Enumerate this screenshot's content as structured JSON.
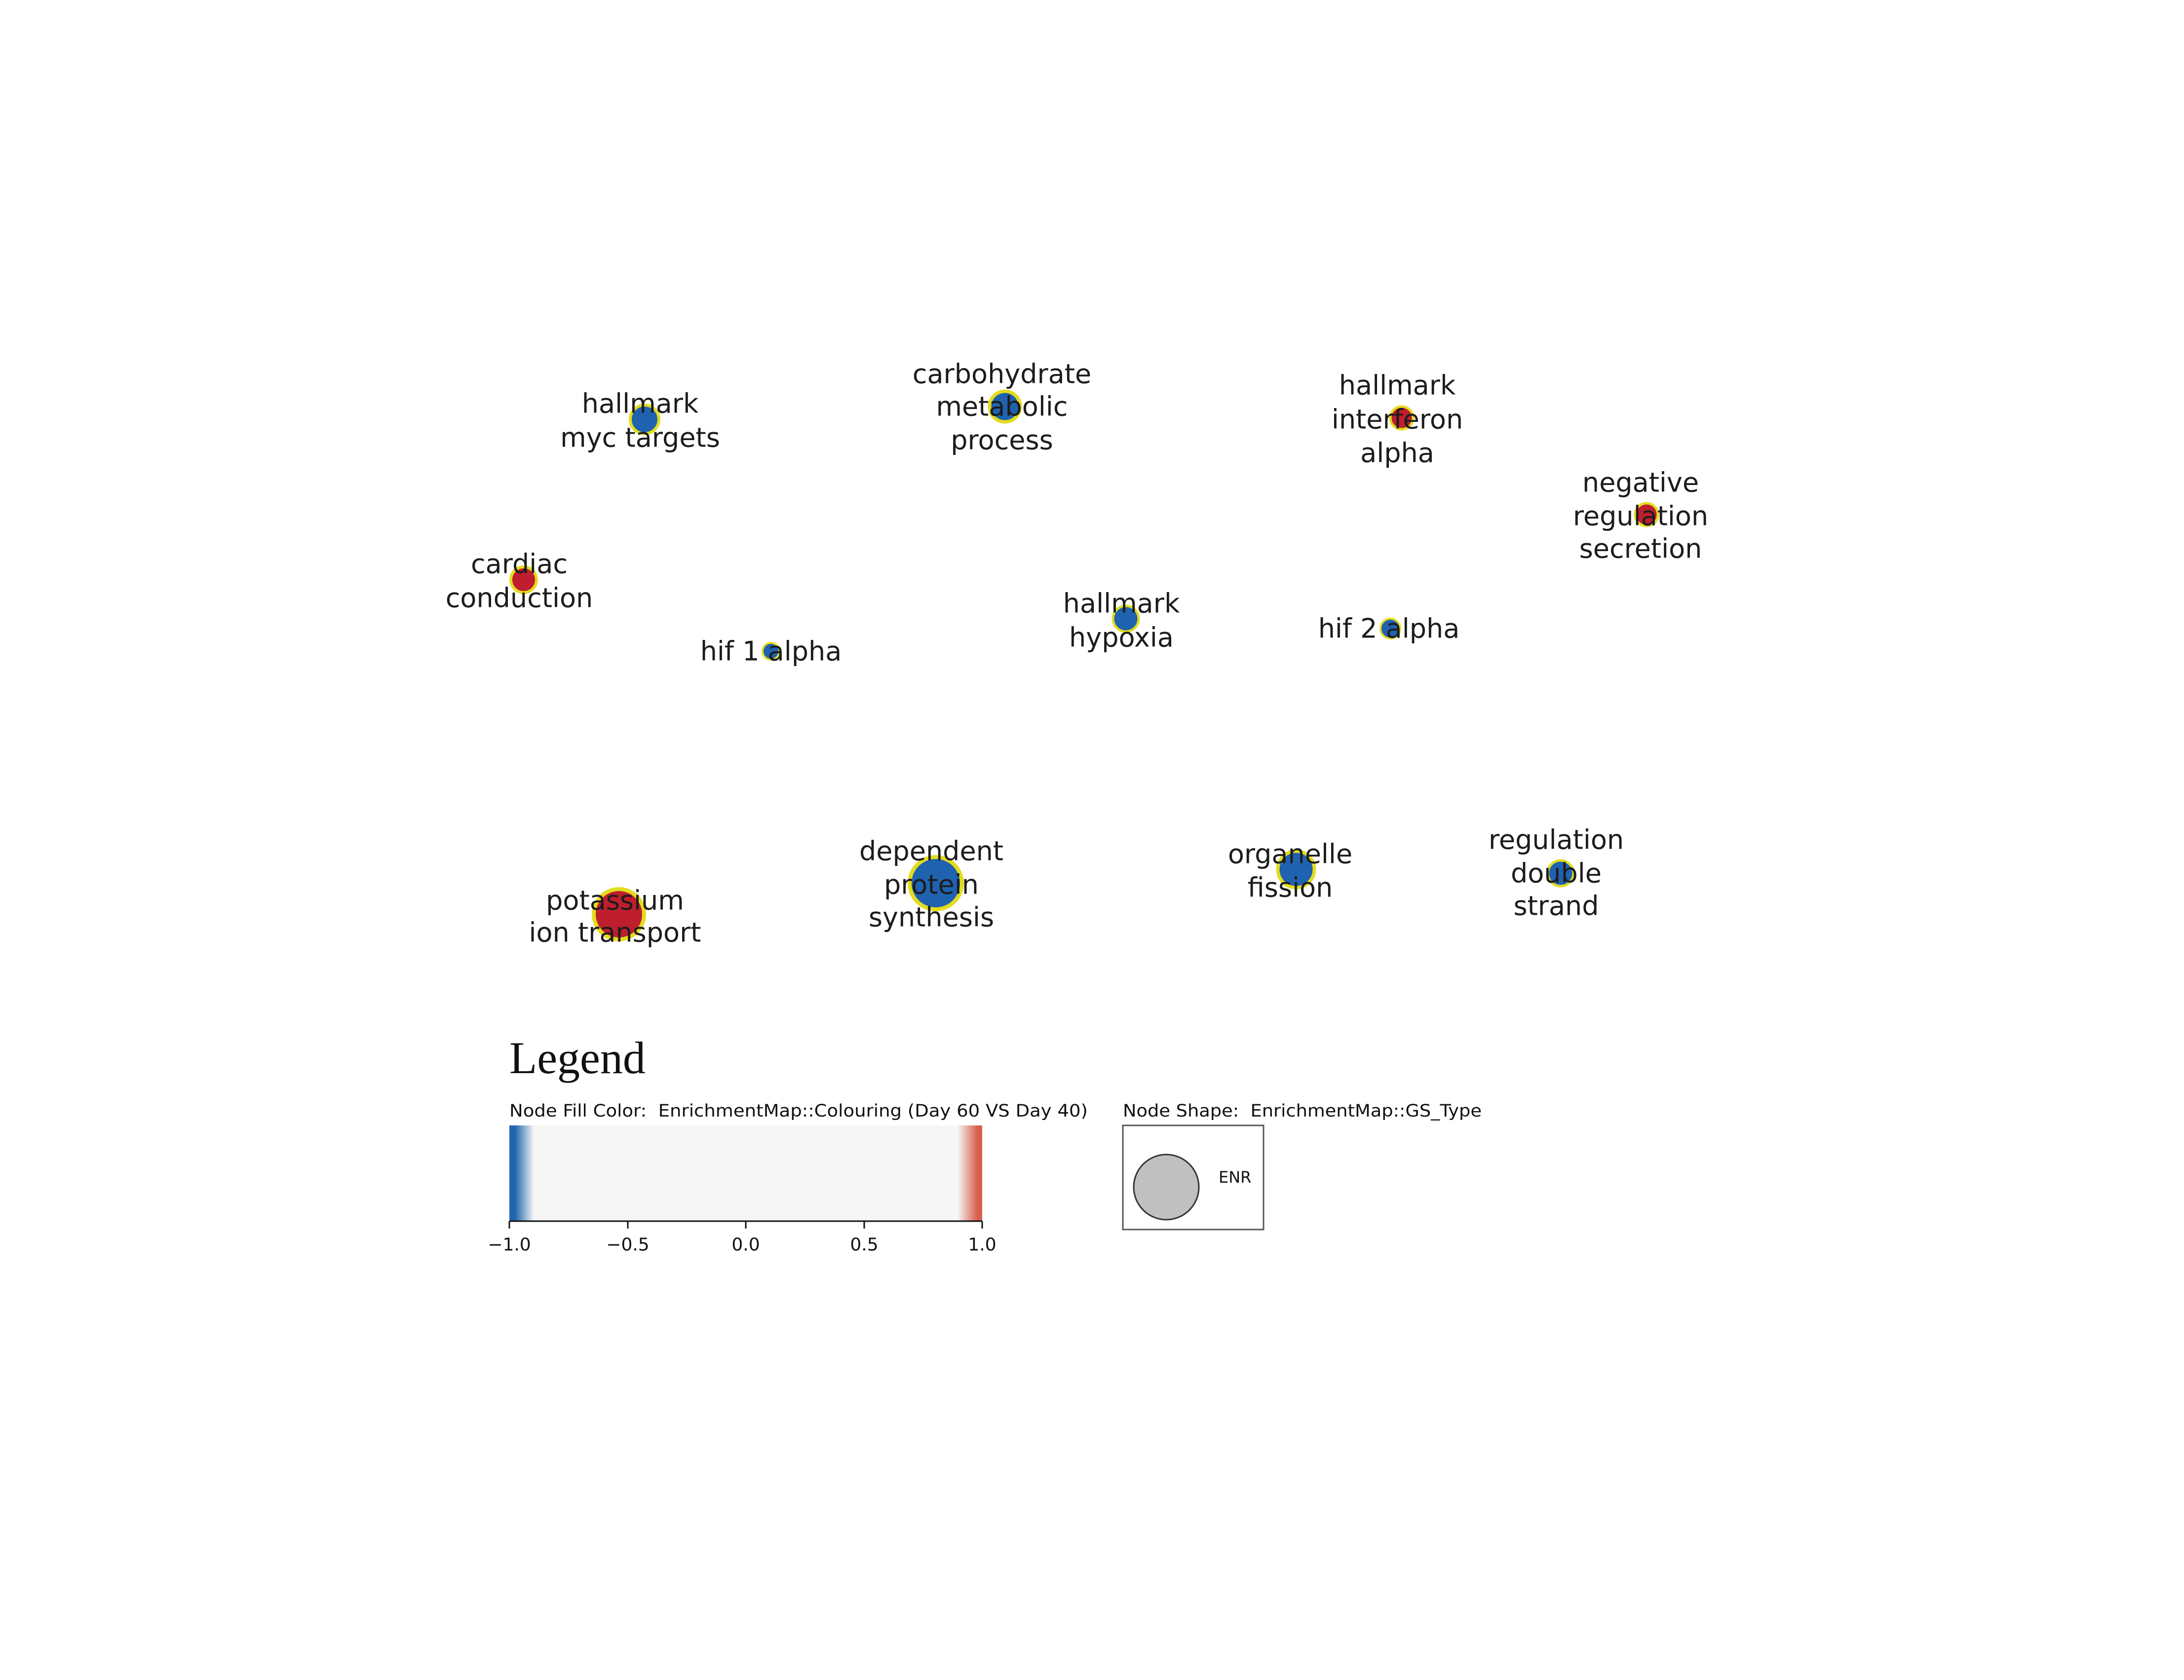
{
  "network": {
    "nodes": [
      {
        "label_lines": [
          "hallmark",
          "myc targets"
        ],
        "fill": "#1f62b0"
      },
      {
        "label_lines": [
          "carbohydrate",
          "metabolic",
          "process"
        ],
        "fill": "#1f62b0"
      },
      {
        "label_lines": [
          "hallmark",
          "interferon",
          "alpha"
        ],
        "fill": "#be1e2d"
      },
      {
        "label_lines": [
          "negative",
          "regulation",
          "secretion"
        ],
        "fill": "#be1e2d"
      },
      {
        "label_lines": [
          "cardiac",
          "conduction"
        ],
        "fill": "#be1e2d"
      },
      {
        "label_lines": [
          "hif 1 alpha"
        ],
        "fill": "#1f62b0"
      },
      {
        "label_lines": [
          "hallmark",
          "hypoxia"
        ],
        "fill": "#1f62b0"
      },
      {
        "label_lines": [
          "hif 2 alpha"
        ],
        "fill": "#1f62b0"
      },
      {
        "label_lines": [
          "potassium",
          "ion transport"
        ],
        "fill": "#be1e2d"
      },
      {
        "label_lines": [
          "dependent",
          "protein",
          "synthesis"
        ],
        "fill": "#1f62b0"
      },
      {
        "label_lines": [
          "organelle",
          "fission"
        ],
        "fill": "#1f62b0"
      },
      {
        "label_lines": [
          "regulation",
          "double",
          "strand"
        ],
        "fill": "#1f62b0"
      }
    ]
  },
  "colors": {
    "node_border": "#e3dc1f"
  },
  "legend": {
    "title": "Legend",
    "fill_color": {
      "label": "Node Fill Color:  EnrichmentMap::Colouring (Day 60 VS Day 40)",
      "ticks": [
        "−1.0",
        "−0.5",
        "0.0",
        "0.5",
        "1.0"
      ],
      "colors": {
        "low": "#2166ac",
        "mid": "#f6f6f6",
        "high": "#d6604d"
      }
    },
    "node_shape": {
      "label": "Node Shape:  EnrichmentMap::GS_Type",
      "items": [
        {
          "label": "ENR",
          "fill": "#c0c0c0"
        }
      ]
    }
  }
}
